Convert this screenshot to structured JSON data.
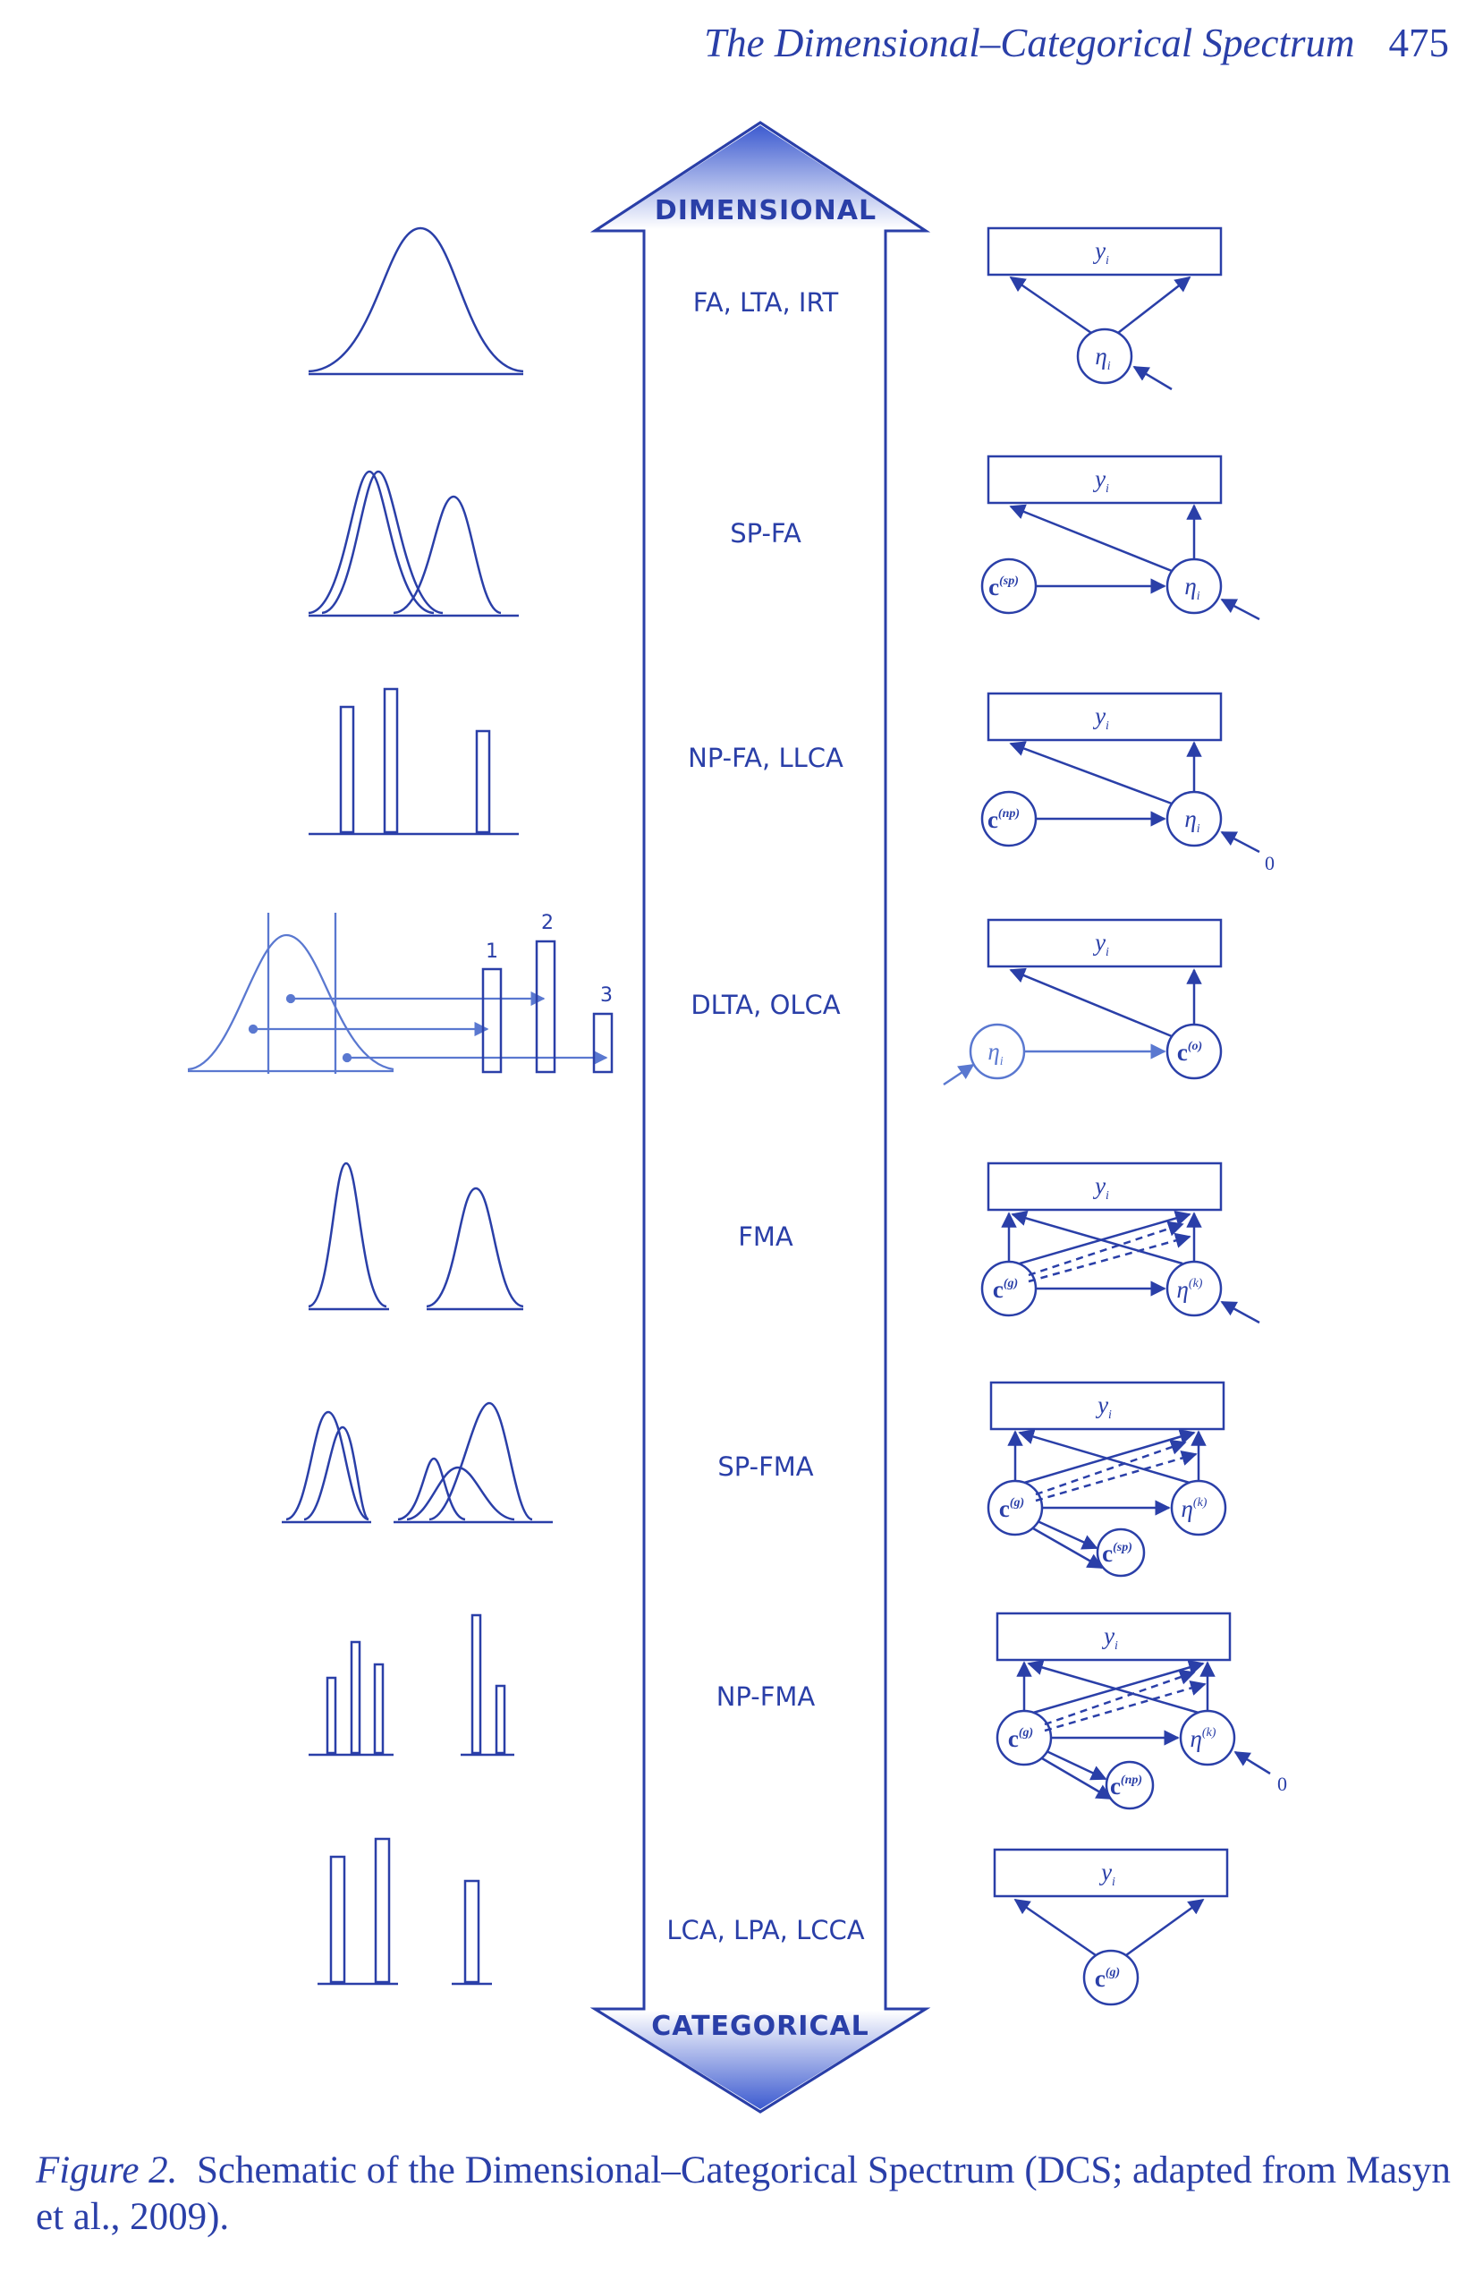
{
  "header": {
    "title": "The Dimensional–Categorical Spectrum",
    "page_number": "475"
  },
  "spectrum": {
    "top_label": "DIMENSIONAL",
    "bottom_label": "CATEGORICAL",
    "rows": [
      {
        "label": "FA, LTA, IRT"
      },
      {
        "label": "SP-FA"
      },
      {
        "label": "NP-FA, LLCA"
      },
      {
        "label": "DLTA, OLCA"
      },
      {
        "label": "FMA"
      },
      {
        "label": "SP-FMA"
      },
      {
        "label": "NP-FMA"
      },
      {
        "label": "LCA, LPA, LCCA"
      }
    ]
  },
  "models": {
    "y": "y",
    "y_sub": "i",
    "eta": "η",
    "eta_sub": "i",
    "c": "c",
    "sup_sp": "(sp)",
    "sup_np": "(np)",
    "sup_o": "(o)",
    "sup_g": "(g)",
    "sup_k": "(k)",
    "zero": "0"
  },
  "dlta_numbers": [
    "1",
    "2",
    "3"
  ],
  "caption": {
    "figure_label": "Figure 2.",
    "text": "Schematic of the Dimensional–Categorical Spectrum (DCS; adapted from Masyn et al., 2009)."
  },
  "colors": {
    "ink": "#2a3fa8",
    "light_ink": "#5a78d0",
    "gradient_dark": "#3d5bd0",
    "gradient_light": "#ffffff"
  }
}
